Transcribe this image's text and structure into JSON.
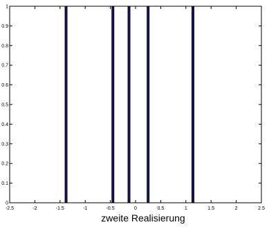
{
  "chart_data": {
    "type": "bar",
    "title": "",
    "xlabel": "zweite Realisierung",
    "ylabel": "",
    "xlim": [
      -2.5,
      2.5
    ],
    "ylim": [
      0,
      1
    ],
    "x_ticks": [
      -2.5,
      -2,
      -1.5,
      -1,
      -0.5,
      0,
      0.5,
      1,
      1.5,
      2,
      2.5
    ],
    "x_tick_labels": [
      "-2.5",
      "-2",
      "-1.5",
      "-1",
      "-0.5",
      "0",
      "0.5",
      "1",
      "1.5",
      "2",
      "2.5"
    ],
    "y_ticks": [
      0,
      0.1,
      0.2,
      0.3,
      0.4,
      0.5,
      0.6,
      0.7,
      0.8,
      0.9,
      1
    ],
    "y_tick_labels": [
      "0",
      "0.1",
      "0.2",
      "0.3",
      "0.4",
      "0.5",
      "0.6",
      "0.7",
      "0.8",
      "0.9",
      "1"
    ],
    "bar_width": 0.04,
    "x": [
      -1.38,
      -0.45,
      -0.13,
      0.25,
      1.14
    ],
    "values": [
      1,
      1,
      1,
      1,
      1
    ],
    "grid": false,
    "bar_color": "#1a1a6e",
    "bar_edge_color": "#000000"
  }
}
